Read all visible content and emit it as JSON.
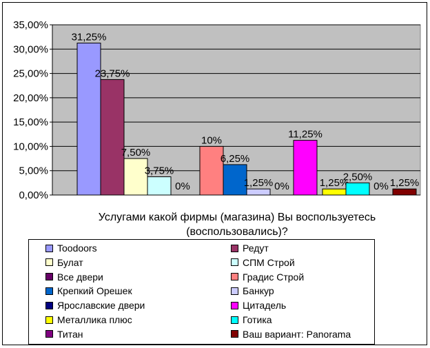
{
  "chart_data": {
    "type": "bar",
    "title": "",
    "xlabel": "Услугами какой фирмы (магазина) Вы воспользуетесь (воспользовались)?",
    "ylabel": "",
    "ylim": [
      0,
      35
    ],
    "yticks": [
      "0,00%",
      "5,00%",
      "10,00%",
      "15,00%",
      "20,00%",
      "25,00%",
      "30,00%",
      "35,00%"
    ],
    "grid": true,
    "legend_position": "bottom",
    "plot_background": "#c0c0c0",
    "series": [
      {
        "name": "Toodoors",
        "value": 31.25,
        "label": "31,25%",
        "color": "#9999ff"
      },
      {
        "name": "Редут",
        "value": 23.75,
        "label": "23,75%",
        "color": "#993366"
      },
      {
        "name": "Булат",
        "value": 7.5,
        "label": "7,50%",
        "color": "#ffffcc"
      },
      {
        "name": "СПМ Строй",
        "value": 3.75,
        "label": "3,75%",
        "color": "#ccffff"
      },
      {
        "name": "Все двери",
        "value": 0,
        "label": "0%",
        "color": "#660066"
      },
      {
        "name": "Градис Строй",
        "value": 10,
        "label": "10%",
        "color": "#ff8080"
      },
      {
        "name": "Крепкий Орешек",
        "value": 6.25,
        "label": "6,25%",
        "color": "#0066cc"
      },
      {
        "name": "Банкур",
        "value": 1.25,
        "label": "1,25%",
        "color": "#ccccff"
      },
      {
        "name": "Ярославские двери",
        "value": 0,
        "label": "0%",
        "color": "#000080"
      },
      {
        "name": "Цитадель",
        "value": 11.25,
        "label": "11,25%",
        "color": "#ff00ff"
      },
      {
        "name": "Металлика плюс",
        "value": 1.25,
        "label": "1,25%",
        "color": "#ffff00"
      },
      {
        "name": "Готика",
        "value": 2.5,
        "label": "2,50%",
        "color": "#00ffff"
      },
      {
        "name": "Титан",
        "value": 0,
        "label": "0%",
        "color": "#800080"
      },
      {
        "name": "Ваш вариант: Panorama",
        "value": 1.25,
        "label": "1,25%",
        "color": "#800000"
      }
    ]
  }
}
